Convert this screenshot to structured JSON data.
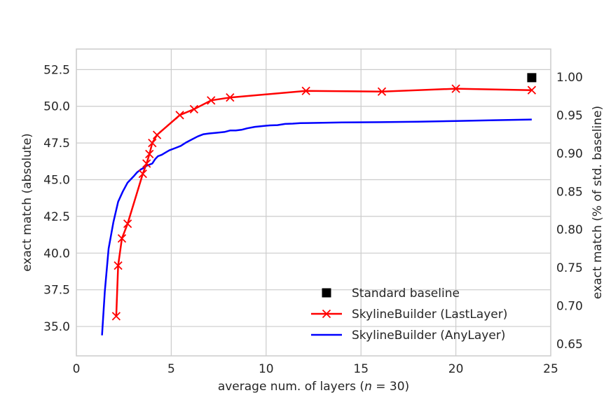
{
  "chart_data": {
    "type": "line",
    "xlabel": "average num. of layers (n = 30)",
    "xlabel_parts": {
      "prefix": "average num. of layers (",
      "var": "n",
      "suffix": " = 30)"
    },
    "ylabel_left": "exact match (absolute)",
    "ylabel_right": "exact match (% of std. baseline)",
    "xlim": [
      0,
      25
    ],
    "ylim_left": [
      33.0,
      53.9
    ],
    "ylim_right": [
      0.6346,
      1.0365
    ],
    "xticks": [
      "0",
      "5",
      "10",
      "15",
      "20",
      "25"
    ],
    "xtick_values": [
      0,
      5,
      10,
      15,
      20,
      25
    ],
    "yticks_left": [
      "35.0",
      "37.5",
      "40.0",
      "42.5",
      "45.0",
      "47.5",
      "50.0",
      "52.5"
    ],
    "ytick_values_left": [
      35.0,
      37.5,
      40.0,
      42.5,
      45.0,
      47.5,
      50.0,
      52.5
    ],
    "yticks_right": [
      "0.65",
      "0.70",
      "0.75",
      "0.80",
      "0.85",
      "0.90",
      "0.95",
      "1.00"
    ],
    "ytick_values_right": [
      0.65,
      0.7,
      0.75,
      0.8,
      0.85,
      0.9,
      0.95,
      1.0
    ],
    "grid": true,
    "legend_position": "lower-right",
    "series": [
      {
        "name": "Standard baseline",
        "marker": "square",
        "color": "#000000",
        "x": [
          24.0
        ],
        "y": [
          51.95
        ]
      },
      {
        "name": "SkylineBuilder (LastLayer)",
        "marker": "x",
        "color": "#ff0000",
        "x": [
          2.1,
          2.2,
          2.4,
          2.7,
          3.5,
          3.7,
          3.85,
          4.0,
          4.25,
          5.45,
          6.2,
          7.1,
          8.1,
          12.1,
          16.1,
          20.0,
          24.0
        ],
        "y": [
          35.7,
          39.15,
          41.0,
          42.0,
          45.4,
          46.1,
          46.75,
          47.5,
          48.05,
          49.4,
          49.8,
          50.4,
          50.6,
          51.05,
          51.0,
          51.2,
          51.1
        ]
      },
      {
        "name": "SkylineBuilder (AnyLayer)",
        "marker": "none",
        "color": "#0000ff",
        "x": [
          1.35,
          1.5,
          1.7,
          1.95,
          2.2,
          2.45,
          2.7,
          3.0,
          3.2,
          3.4,
          3.55,
          3.7,
          3.9,
          4.0,
          4.15,
          4.3,
          4.5,
          4.7,
          4.9,
          5.2,
          5.5,
          5.8,
          6.1,
          6.4,
          6.7,
          7.0,
          7.4,
          7.8,
          8.1,
          8.4,
          8.7,
          9.0,
          9.4,
          9.8,
          10.2,
          10.6,
          11.0,
          11.4,
          11.8,
          12.2,
          13.0,
          14.0,
          16.0,
          18.0,
          20.0,
          22.0,
          24.0
        ],
        "y": [
          34.4,
          37.4,
          40.3,
          42.1,
          43.5,
          44.2,
          44.8,
          45.2,
          45.5,
          45.7,
          45.8,
          45.95,
          46.05,
          46.1,
          46.4,
          46.6,
          46.7,
          46.85,
          47.0,
          47.15,
          47.3,
          47.55,
          47.75,
          47.95,
          48.1,
          48.15,
          48.2,
          48.25,
          48.35,
          48.35,
          48.4,
          48.5,
          48.6,
          48.65,
          48.7,
          48.72,
          48.8,
          48.82,
          48.85,
          48.86,
          48.88,
          48.9,
          48.92,
          48.95,
          49.0,
          49.05,
          49.1
        ]
      }
    ]
  }
}
